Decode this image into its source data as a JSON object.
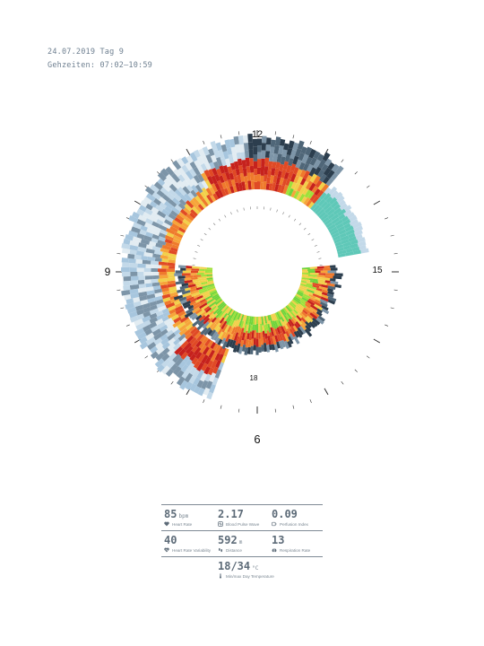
{
  "header": {
    "date_line": "24.07.2019 Tag 9",
    "time_line": "Gehzeiten: 07:02–10:59"
  },
  "chart_data": {
    "type": "radial-spiral-heatmap",
    "clock_labels": {
      "top": "12",
      "left": "9",
      "right": "15",
      "bottom": "6",
      "inner": "18"
    },
    "colors": [
      "#2c3e4e",
      "#4f6678",
      "#7d95a8",
      "#a7c6de",
      "#c3d9e9",
      "#e2ecf2",
      "#f2d04a",
      "#f6a53a",
      "#ef7a2c",
      "#e04a25",
      "#c6221d",
      "#9fe03a",
      "#6fd43a",
      "#5fc8b8"
    ]
  },
  "stats": {
    "heart_rate": {
      "value": "85",
      "unit": "bpm",
      "label": "Heart Rate",
      "icon": "heart-icon"
    },
    "blood_pulse_wave": {
      "value": "2.17",
      "unit": "",
      "label": "Blood Pulse Wave",
      "icon": "pulse-wave-icon"
    },
    "perfusion_index": {
      "value": "0.09",
      "unit": "",
      "label": "Perfusion Index",
      "icon": "perfusion-icon"
    },
    "heart_rate_variability": {
      "value": "40",
      "unit": "",
      "label": "Heart Rate Variability",
      "icon": "heart-variability-icon"
    },
    "distance": {
      "value": "592",
      "unit": "m",
      "label": "Distance",
      "icon": "footsteps-icon"
    },
    "respiration_rate": {
      "value": "13",
      "unit": "",
      "label": "Respiration Rate",
      "icon": "lungs-icon"
    },
    "temperature": {
      "value": "18/34",
      "unit": "°C",
      "label": "Min/max Day Temperature",
      "icon": "thermometer-icon"
    }
  }
}
